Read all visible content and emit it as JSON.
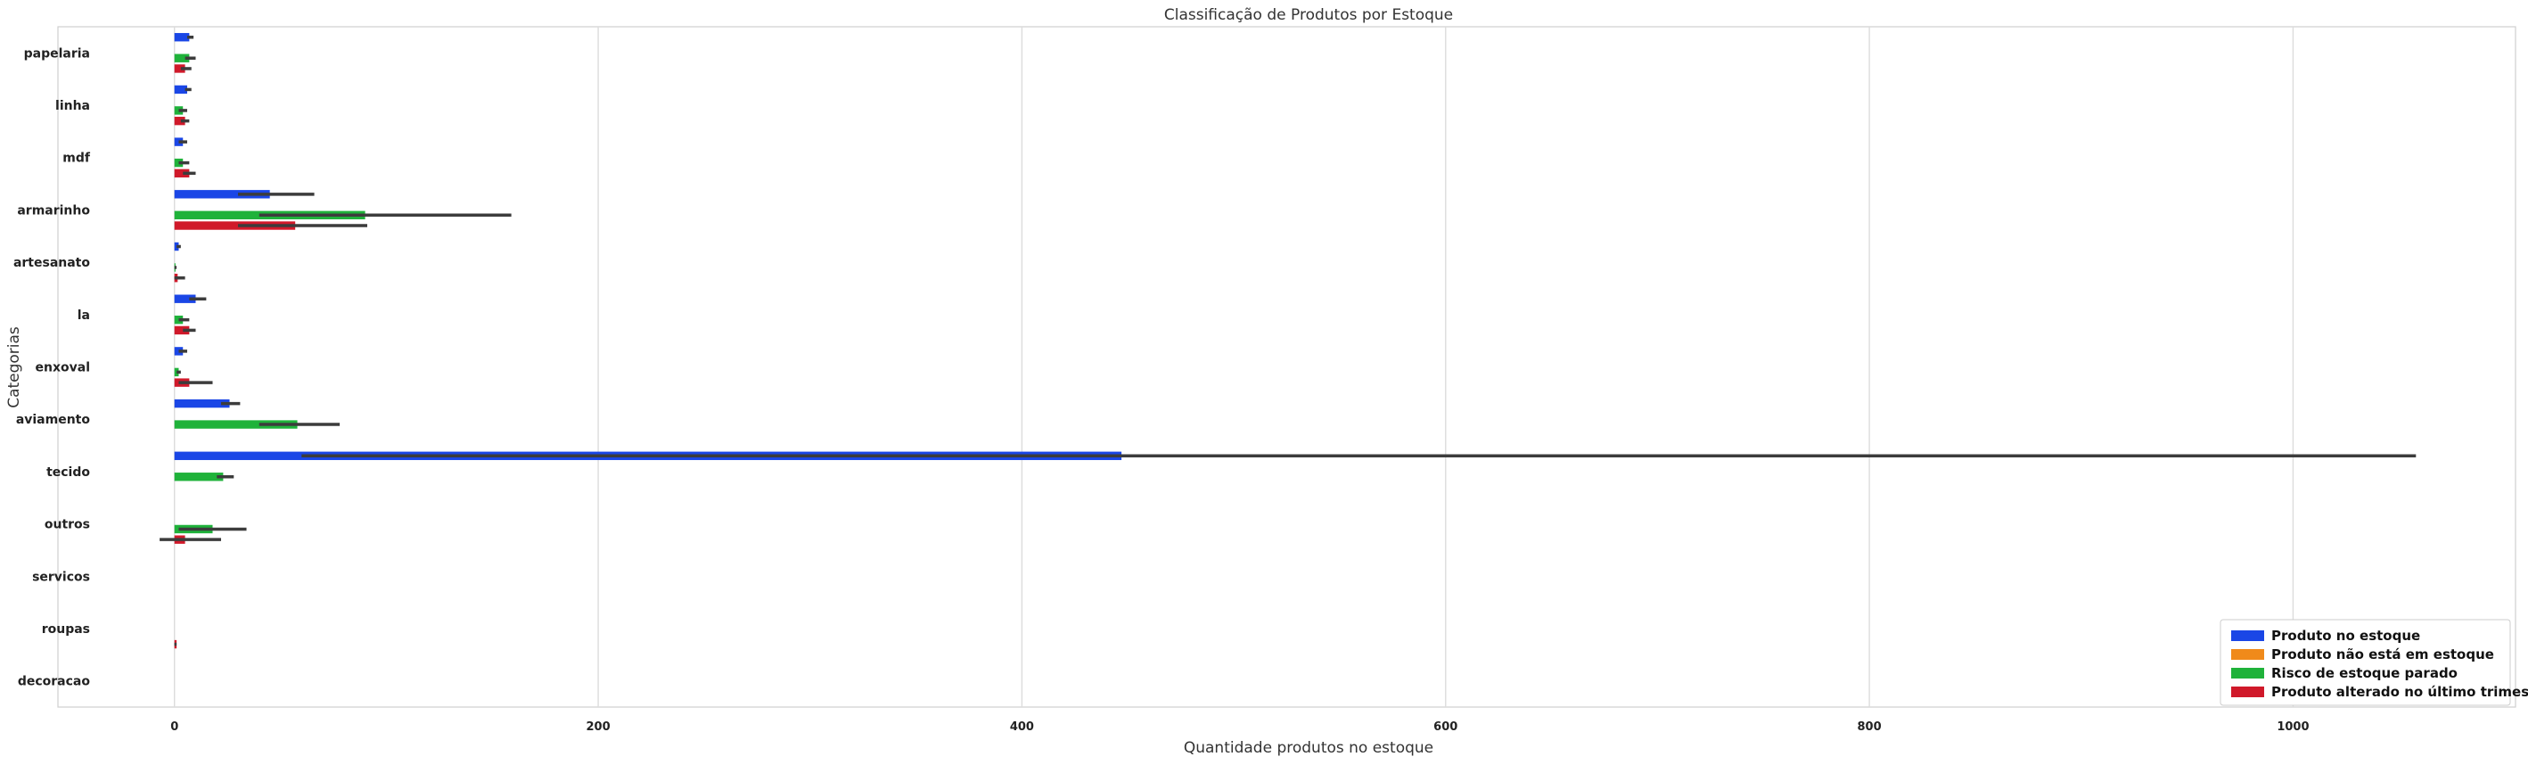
{
  "chart_data": {
    "type": "bar",
    "orientation": "horizontal",
    "title": "Classificação de Produtos por Estoque",
    "xlabel": "Quantidade produtos no estoque",
    "ylabel": "Categorias",
    "xlim": [
      -55,
      1105
    ],
    "xticks": [
      0,
      200,
      400,
      600,
      800,
      1000
    ],
    "grid": "x",
    "legend_position": "bottom-right",
    "categories": [
      "papelaria",
      "linha",
      "mdf",
      "armarinho",
      "artesanato",
      "la",
      "enxoval",
      "aviamento",
      "tecido",
      "outros",
      "servicos",
      "roupas",
      "decoracao"
    ],
    "series": [
      {
        "name": "Produto no estoque",
        "color": "#1a46e6",
        "values": [
          7,
          6,
          4,
          45,
          2,
          10,
          4,
          26,
          447,
          0,
          0,
          0,
          0
        ],
        "err_low": [
          6,
          5,
          2,
          30,
          1,
          7,
          2,
          22,
          60,
          0,
          0,
          0,
          0
        ],
        "err_high": [
          9,
          8,
          6,
          66,
          3,
          15,
          6,
          31,
          1058,
          0,
          0,
          0,
          0
        ]
      },
      {
        "name": "Produto não está em estoque",
        "color": "#f08a1a",
        "values": [
          0,
          0,
          0,
          0,
          0,
          0,
          0,
          0,
          0,
          0,
          0,
          0,
          0
        ],
        "err_low": [
          0,
          0,
          0,
          0,
          0,
          0,
          0,
          0,
          0,
          0,
          0,
          0,
          0
        ],
        "err_high": [
          0,
          0,
          0,
          0,
          0,
          0,
          0,
          0,
          0,
          0,
          0,
          0,
          0
        ]
      },
      {
        "name": "Risco de estoque parado",
        "color": "#1fb23a",
        "values": [
          7,
          4,
          4,
          90,
          0.5,
          4,
          2,
          58,
          23,
          18,
          0,
          0,
          0
        ],
        "err_low": [
          5,
          2,
          2,
          40,
          0,
          2,
          1,
          40,
          20,
          2,
          0,
          0,
          0
        ],
        "err_high": [
          10,
          6,
          7,
          159,
          1,
          7,
          3,
          78,
          28,
          34,
          0,
          0,
          0
        ]
      },
      {
        "name": "Produto alterado no último trimestre",
        "color": "#d0192a",
        "values": [
          5,
          5,
          7,
          57,
          1.5,
          7,
          7,
          0,
          0,
          5,
          0,
          1,
          0
        ],
        "err_low": [
          3,
          3,
          4,
          30,
          0,
          4,
          2,
          0,
          0,
          -7,
          0,
          0,
          0
        ],
        "err_high": [
          8,
          7,
          10,
          91,
          5,
          10,
          18,
          0,
          0,
          22,
          0,
          1,
          0
        ]
      }
    ]
  }
}
